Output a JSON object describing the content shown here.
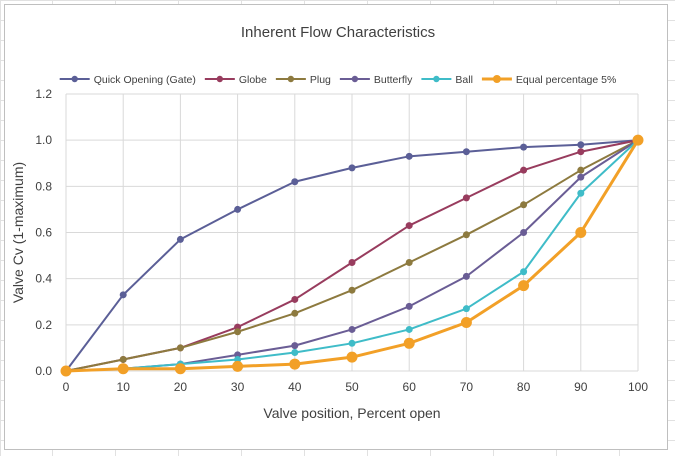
{
  "chart_data": {
    "type": "line",
    "title": "Inherent Flow Characteristics",
    "xlabel": "Valve position, Percent open",
    "ylabel": "Valve Cv (1-maximum)",
    "x": [
      0,
      10,
      20,
      30,
      40,
      50,
      60,
      70,
      80,
      90,
      100
    ],
    "xlim": [
      0,
      100
    ],
    "ylim": [
      0,
      1.2
    ],
    "x_ticks": [
      "0",
      "10",
      "20",
      "30",
      "40",
      "50",
      "60",
      "70",
      "80",
      "90",
      "100"
    ],
    "y_ticks": [
      "0.0",
      "0.2",
      "0.4",
      "0.6",
      "0.8",
      "1.0",
      "1.2"
    ],
    "grid": true,
    "legend_position": "top",
    "series": [
      {
        "name": "Quick Opening (Gate)",
        "color": "#5b5f97",
        "values": [
          0,
          0.33,
          0.57,
          0.7,
          0.82,
          0.88,
          0.93,
          0.95,
          0.97,
          0.98,
          1.0
        ]
      },
      {
        "name": "Globe",
        "color": "#983c5e",
        "values": [
          0,
          0.05,
          0.1,
          0.19,
          0.31,
          0.47,
          0.63,
          0.75,
          0.87,
          0.95,
          1.0
        ]
      },
      {
        "name": "Plug",
        "color": "#8d7a3f",
        "values": [
          0,
          0.05,
          0.1,
          0.17,
          0.25,
          0.35,
          0.47,
          0.59,
          0.72,
          0.87,
          1.0
        ]
      },
      {
        "name": "Butterfly",
        "color": "#6a5d95",
        "values": [
          0,
          0.01,
          0.03,
          0.07,
          0.11,
          0.18,
          0.28,
          0.41,
          0.6,
          0.84,
          1.0
        ]
      },
      {
        "name": "Ball",
        "color": "#3fbcc8",
        "values": [
          0,
          0.01,
          0.03,
          0.05,
          0.08,
          0.12,
          0.18,
          0.27,
          0.43,
          0.77,
          1.0
        ]
      },
      {
        "name": "Equal percentage 5%",
        "color": "#f2a027",
        "values": [
          0,
          0.01,
          0.01,
          0.02,
          0.03,
          0.06,
          0.12,
          0.21,
          0.37,
          0.6,
          1.0
        ]
      }
    ]
  }
}
